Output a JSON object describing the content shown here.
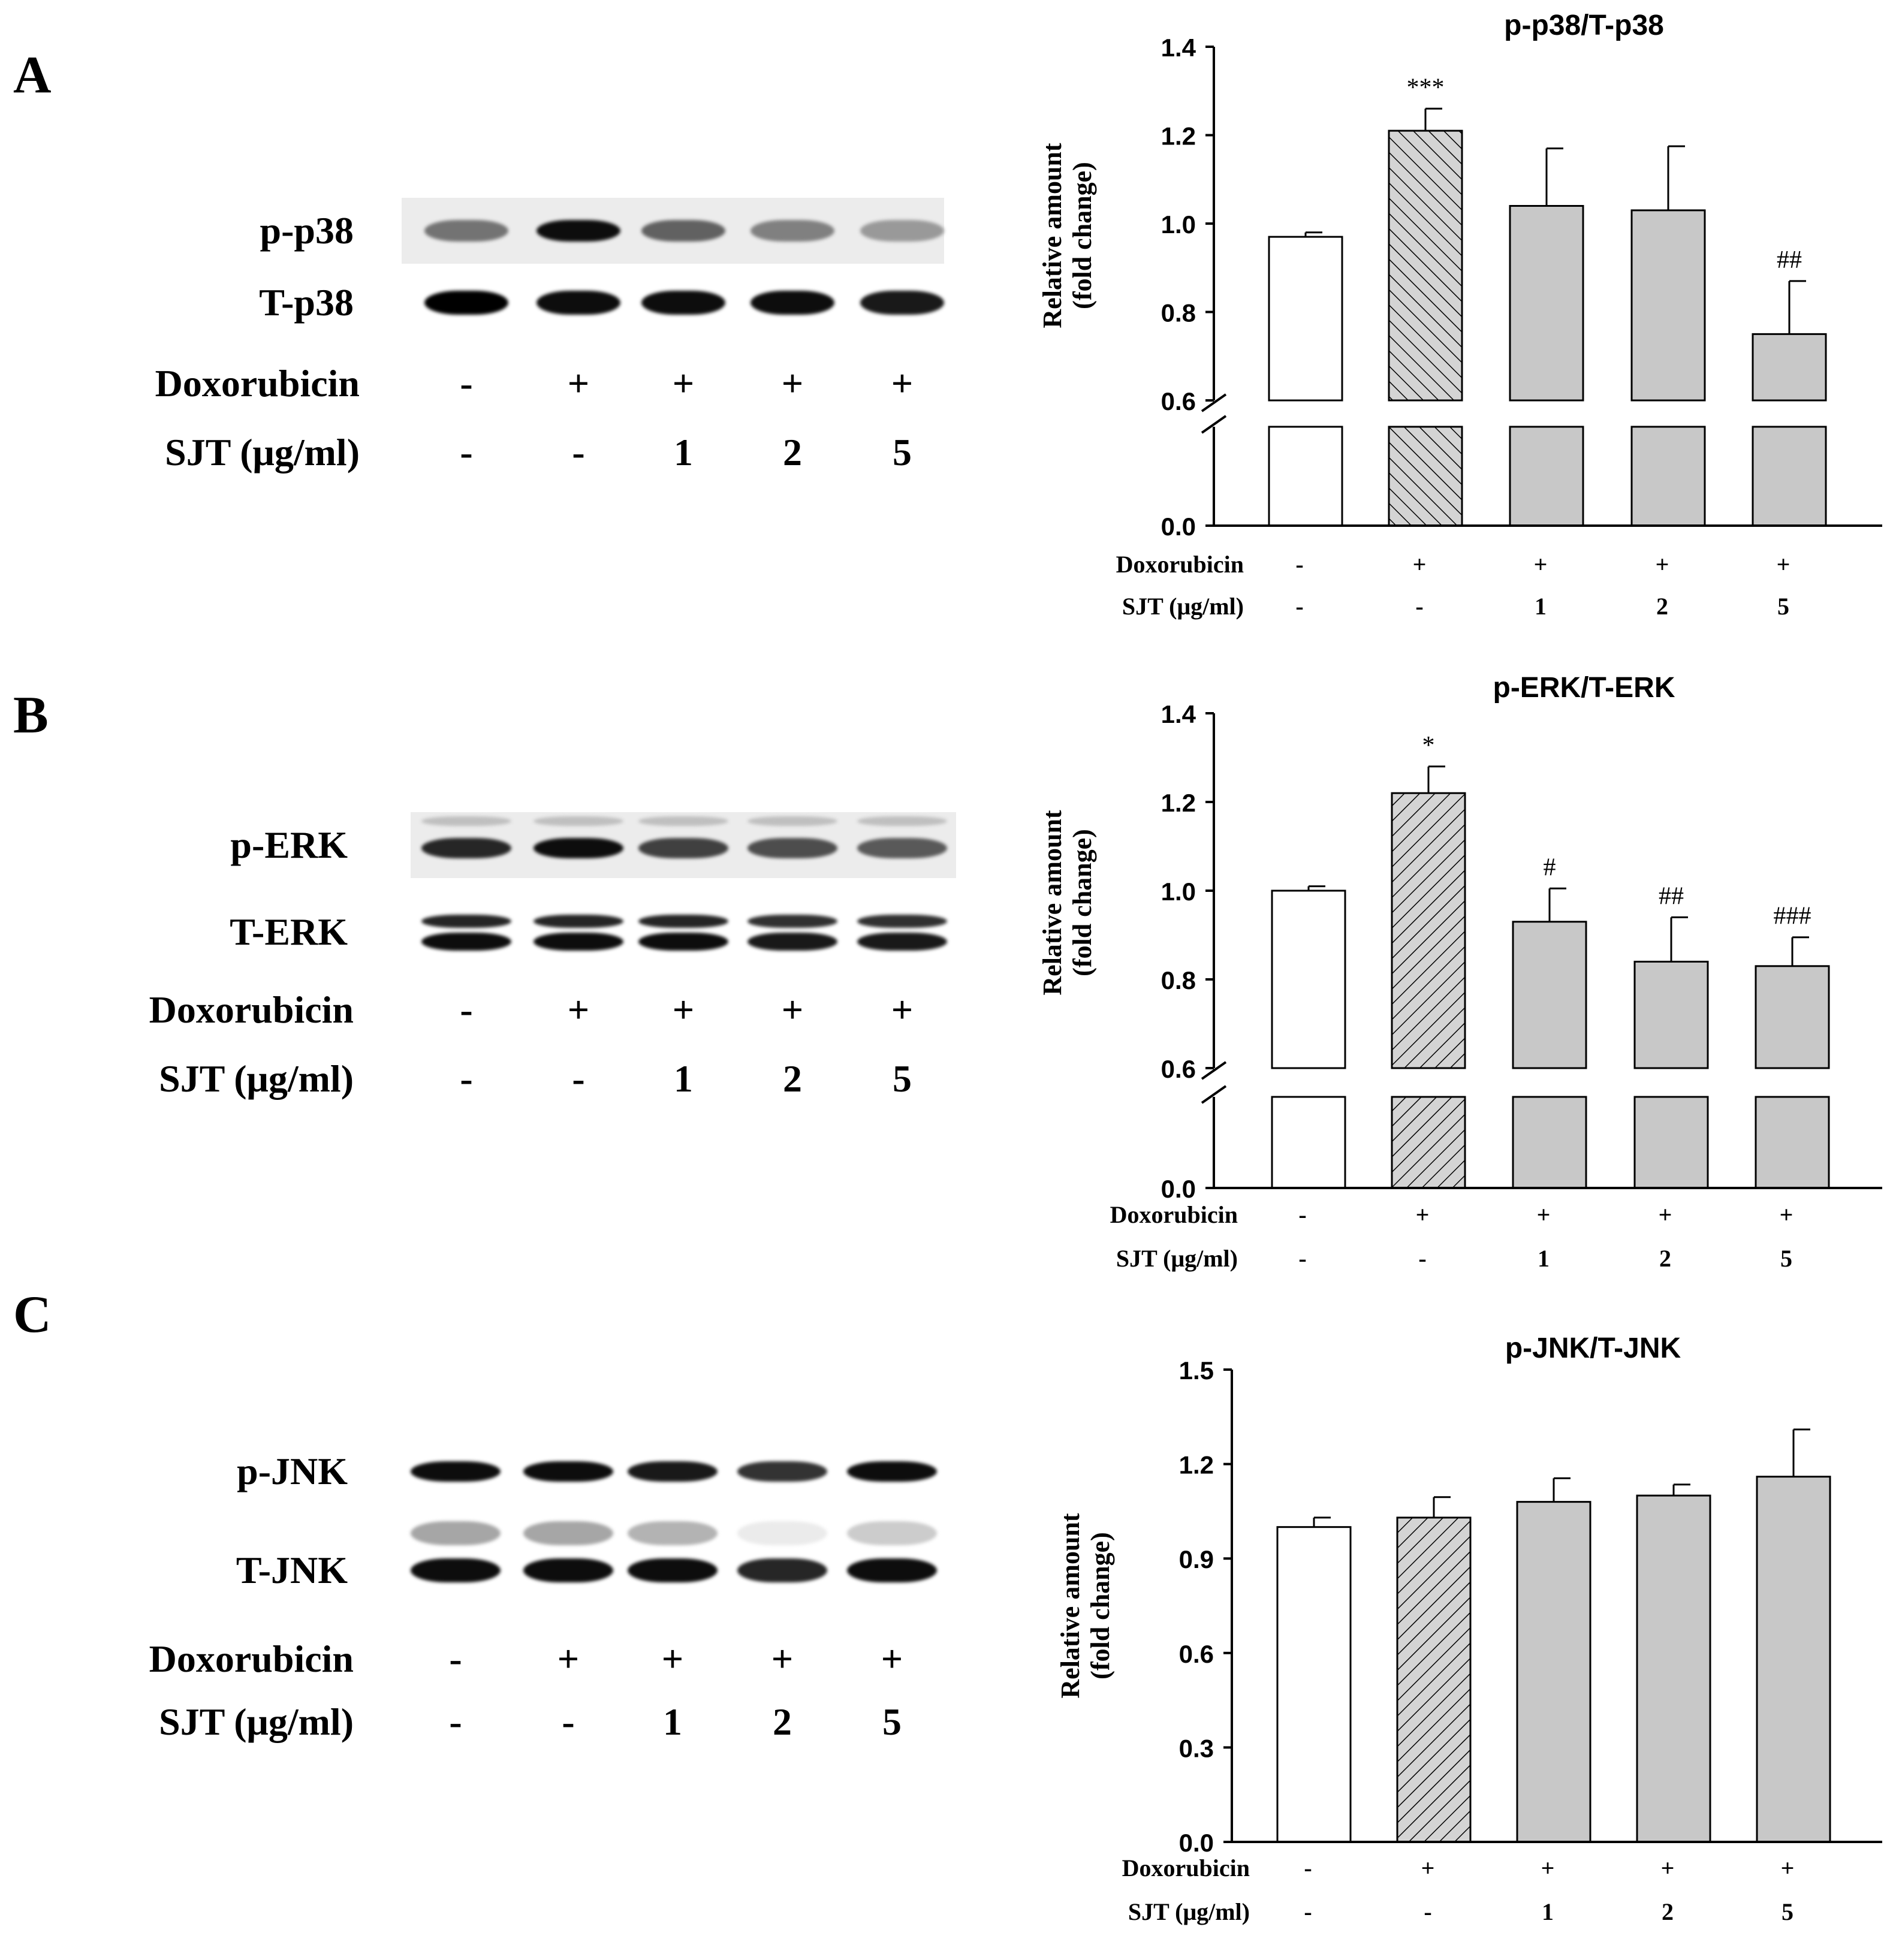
{
  "panels": [
    {
      "letter": "A",
      "blot": {
        "rows": [
          {
            "label": "p-p38",
            "intensities": [
              0.55,
              0.95,
              0.62,
              0.5,
              0.4
            ],
            "bg": true
          },
          {
            "label": "T-p38",
            "intensities": [
              1.0,
              0.95,
              0.95,
              0.95,
              0.9
            ],
            "bg": false
          }
        ],
        "doxorubicin_label": "Doxorubicin",
        "doxorubicin": [
          "-",
          "+",
          "+",
          "+",
          "+"
        ],
        "sjt_label": "SJT (μg/ml)",
        "sjt": [
          "-",
          "-",
          "1",
          "2",
          "5"
        ]
      }
    },
    {
      "letter": "B",
      "blot": {
        "rows": [
          {
            "label": "p-ERK",
            "intensities": [
              0.85,
              0.95,
              0.75,
              0.7,
              0.65
            ],
            "bg": true
          },
          {
            "label": "T-ERK",
            "intensities": [
              0.95,
              0.95,
              0.95,
              0.9,
              0.9
            ],
            "bg": false
          }
        ],
        "doxorubicin_label": "Doxorubicin",
        "doxorubicin": [
          "-",
          "+",
          "+",
          "+",
          "+"
        ],
        "sjt_label": "SJT (μg/ml)",
        "sjt": [
          "-",
          "-",
          "1",
          "2",
          "5"
        ]
      }
    },
    {
      "letter": "C",
      "blot": {
        "rows": [
          {
            "label": "p-JNK",
            "intensities": [
              0.95,
              0.95,
              0.9,
              0.8,
              0.95
            ],
            "bg": false
          },
          {
            "label": "T-JNK",
            "intensities": [
              0.95,
              0.95,
              0.95,
              0.85,
              0.95
            ],
            "bg": false
          }
        ],
        "doxorubicin_label": "Doxorubicin",
        "doxorubicin": [
          "-",
          "+",
          "+",
          "+",
          "+"
        ],
        "sjt_label": "SJT (μg/ml)",
        "sjt": [
          "-",
          "-",
          "1",
          "2",
          "5"
        ]
      }
    }
  ],
  "chart_data": [
    {
      "type": "bar",
      "title": "p-p38/T-p38",
      "ylabel_line1": "Relative amount",
      "ylabel_line2": "(fold change)",
      "yticks": [
        "0.0",
        "0.6",
        "0.8",
        "1.0",
        "1.2",
        "1.4"
      ],
      "ylim_upper": [
        0.6,
        1.4
      ],
      "axis_break": true,
      "x_row1_label": "Doxorubicin",
      "x_row1": [
        "-",
        "+",
        "+",
        "+",
        "+"
      ],
      "x_row2_label": "SJT (μg/ml)",
      "x_row2": [
        "-",
        "-",
        "1",
        "2",
        "5"
      ],
      "values": [
        0.97,
        1.21,
        1.04,
        1.03,
        0.75
      ],
      "errors": [
        0.01,
        0.05,
        0.13,
        0.145,
        0.12
      ],
      "significance": [
        "",
        "***",
        "",
        "",
        "##"
      ],
      "fills": [
        "white",
        "hatch",
        "gray",
        "gray",
        "gray"
      ]
    },
    {
      "type": "bar",
      "title": "p-ERK/T-ERK",
      "ylabel_line1": "Relative amount",
      "ylabel_line2": "(fold change)",
      "yticks": [
        "0.0",
        "0.6",
        "0.8",
        "1.0",
        "1.2",
        "1.4"
      ],
      "ylim_upper": [
        0.6,
        1.4
      ],
      "axis_break": true,
      "x_row1_label": "Doxorubicin",
      "x_row1": [
        "-",
        "+",
        "+",
        "+",
        "+"
      ],
      "x_row2_label": "SJT (μg/ml)",
      "x_row2": [
        "-",
        "-",
        "1",
        "2",
        "5"
      ],
      "values": [
        1.0,
        1.22,
        0.93,
        0.84,
        0.83
      ],
      "errors": [
        0.01,
        0.06,
        0.075,
        0.1,
        0.065
      ],
      "significance": [
        "",
        "*",
        "#",
        "##",
        "###"
      ],
      "fills": [
        "white",
        "hatch",
        "gray",
        "gray",
        "gray"
      ]
    },
    {
      "type": "bar",
      "title": "p-JNK/T-JNK",
      "ylabel_line1": "Relative amount",
      "ylabel_line2": "(fold change)",
      "yticks": [
        "0.0",
        "0.3",
        "0.6",
        "0.9",
        "1.2",
        "1.5"
      ],
      "ylim": [
        0,
        1.5
      ],
      "axis_break": false,
      "x_row1_label": "Doxorubicin",
      "x_row1": [
        "-",
        "+",
        "+",
        "+",
        "+"
      ],
      "x_row2_label": "SJT (μg/ml)",
      "x_row2": [
        "-",
        "-",
        "1",
        "2",
        "5"
      ],
      "values": [
        1.0,
        1.03,
        1.08,
        1.1,
        1.16
      ],
      "errors": [
        0.03,
        0.065,
        0.075,
        0.035,
        0.15
      ],
      "significance": [
        "",
        "",
        "",
        "",
        ""
      ],
      "fills": [
        "white",
        "hatch",
        "gray",
        "gray",
        "gray"
      ]
    }
  ]
}
